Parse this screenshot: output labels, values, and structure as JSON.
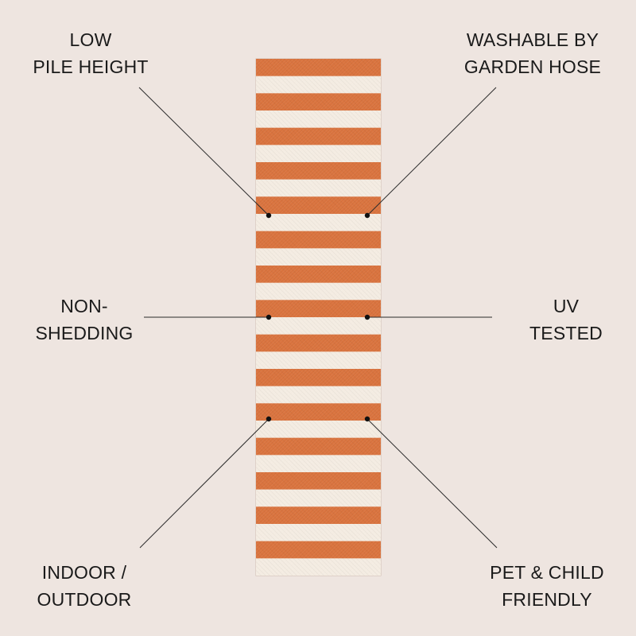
{
  "features": [
    {
      "id": "low-pile",
      "lines": [
        "LOW",
        "PILE HEIGHT"
      ]
    },
    {
      "id": "washable",
      "lines": [
        "WASHABLE BY",
        "GARDEN HOSE"
      ]
    },
    {
      "id": "non-shedding",
      "lines": [
        "NON-",
        "SHEDDING"
      ]
    },
    {
      "id": "uv-tested",
      "lines": [
        "UV",
        "TESTED"
      ]
    },
    {
      "id": "indoor-outdoor",
      "lines": [
        "INDOOR /",
        "OUTDOOR"
      ]
    },
    {
      "id": "pet-child",
      "lines": [
        "PET & CHILD",
        "FRIENDLY"
      ]
    }
  ],
  "colors": {
    "background": "#eee5e0",
    "stripe_orange": "#d9733e",
    "stripe_cream": "#f4ece2",
    "leader_line": "#2a2a2a"
  },
  "rug": {
    "pattern": "horizontal-stripes",
    "stripe_count": 30
  }
}
